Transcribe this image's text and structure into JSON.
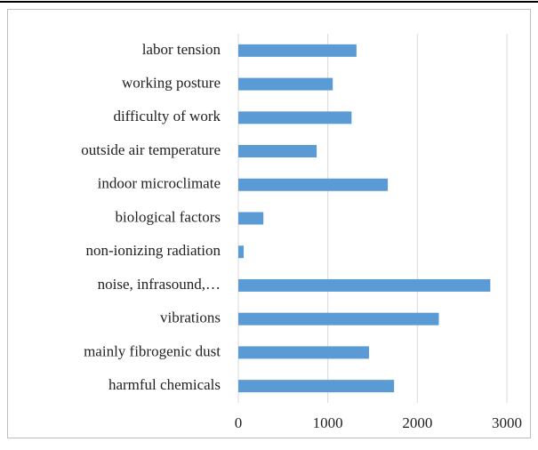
{
  "chart_data": {
    "type": "bar",
    "orientation": "horizontal",
    "categories": [
      "labor tension",
      "working posture",
      "difficulty of work",
      "outside air temperature",
      "indoor microclimate",
      "biological factors",
      "non-ionizing radiation",
      "noise, infrasound,…",
      "vibrations",
      "mainly fibrogenic dust",
      "harmful chemicals"
    ],
    "values": [
      1320,
      1055,
      1265,
      875,
      1670,
      280,
      60,
      2815,
      2240,
      1460,
      1740
    ],
    "color": "#5b9bd5",
    "xlim": [
      0,
      3000
    ],
    "xticks": [
      0,
      1000,
      2000,
      3000
    ],
    "grid": true
  }
}
